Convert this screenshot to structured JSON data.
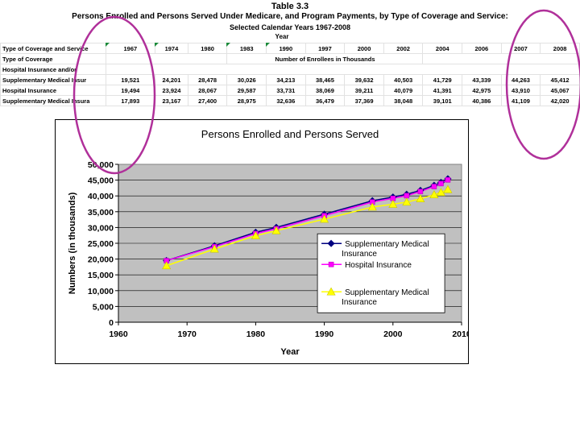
{
  "table": {
    "title": "Table 3.3",
    "subtitle": "Persons Enrolled and Persons Served Under Medicare, and Program Payments, by Type of Coverage and Service:",
    "subtitle2": "Selected Calendar Years 1967-2008",
    "year_header": "Year",
    "units_label": "Number of Enrollees in Thousands",
    "header_label": "Type of Coverage and Service",
    "row2_label": "Type of Coverage",
    "row3_label": "Hospital Insurance and/or",
    "years": [
      "1967",
      "1974",
      "1980",
      "1983",
      "1990",
      "1997",
      "2000",
      "2002",
      "2004",
      "2006",
      "2007",
      "2008"
    ],
    "rows": [
      {
        "label": "Supplementary Medical Insur",
        "values": [
          "19,521",
          "24,201",
          "28,478",
          "30,026",
          "34,213",
          "38,465",
          "39,632",
          "40,503",
          "41,729",
          "43,339",
          "44,263",
          "45,412"
        ]
      },
      {
        "label": "Hospital Insurance",
        "values": [
          "19,494",
          "23,924",
          "28,067",
          "29,587",
          "33,731",
          "38,069",
          "39,211",
          "40,079",
          "41,391",
          "42,975",
          "43,910",
          "45,067"
        ]
      },
      {
        "label": "Supplementary Medical Insura",
        "values": [
          "17,893",
          "23,167",
          "27,400",
          "28,975",
          "32,636",
          "36,479",
          "37,369",
          "38,048",
          "39,101",
          "40,386",
          "41,109",
          "42,020"
        ]
      }
    ]
  },
  "chart_data": {
    "type": "line",
    "title": "Persons Enrolled and Persons Served",
    "xlabel": "Year",
    "ylabel": "Numbers (in thousands)",
    "xlim": [
      1960,
      2010
    ],
    "ylim": [
      0,
      50000
    ],
    "xticks": [
      "1960",
      "1970",
      "1980",
      "1990",
      "2000",
      "2010"
    ],
    "yticks": [
      "0",
      "5,000",
      "10,000",
      "15,000",
      "20,000",
      "25,000",
      "30,000",
      "35,000",
      "40,000",
      "45,000",
      "50,000"
    ],
    "legend_position": "lower-right",
    "x": [
      1967,
      1974,
      1980,
      1983,
      1990,
      1997,
      2000,
      2002,
      2004,
      2006,
      2007,
      2008
    ],
    "series": [
      {
        "name": "Supplementary Medical Insurance",
        "color": "#000080",
        "marker": "diamond",
        "values": [
          19521,
          24201,
          28478,
          30026,
          34213,
          38465,
          39632,
          40503,
          41729,
          43339,
          44263,
          45412
        ]
      },
      {
        "name": "Hospital Insurance",
        "color": "#ff00ff",
        "marker": "square",
        "values": [
          19494,
          23924,
          28067,
          29587,
          33731,
          38069,
          39211,
          40079,
          41391,
          42975,
          43910,
          45067
        ]
      },
      {
        "name": "Supplementary Medical Insurance",
        "color": "#ffff00",
        "marker": "triangle",
        "values": [
          17893,
          23167,
          27400,
          28975,
          32636,
          36479,
          37369,
          38048,
          39101,
          40386,
          41109,
          42020
        ]
      }
    ]
  },
  "annotations": {
    "circle_color": "#b0309a"
  }
}
